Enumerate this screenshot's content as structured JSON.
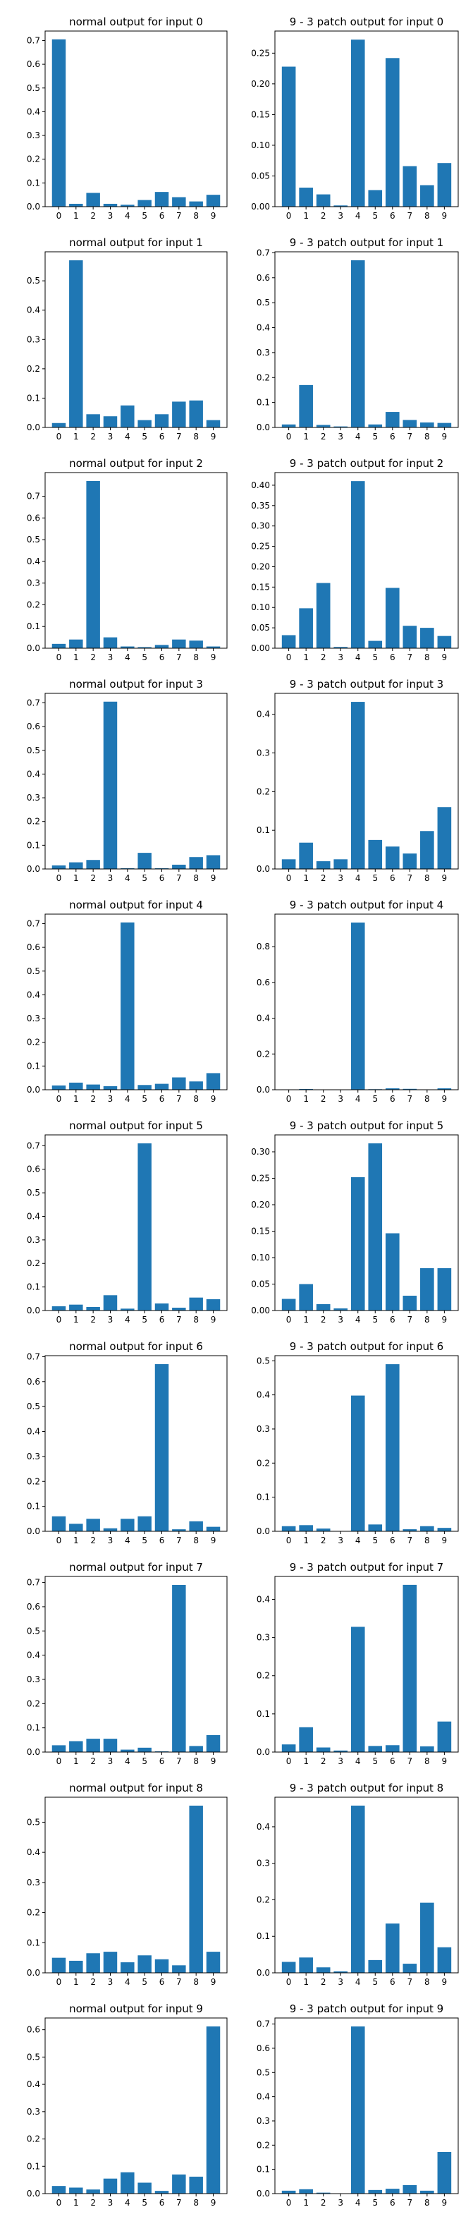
{
  "figure": {
    "bar_color": "#1f77b4",
    "background": "#ffffff",
    "axis_color": "#000000"
  },
  "chart_data": [
    {
      "type": "bar",
      "title": "normal output for input 0",
      "categories": [
        "0",
        "1",
        "2",
        "3",
        "4",
        "5",
        "6",
        "7",
        "8",
        "9"
      ],
      "values": [
        0.705,
        0.012,
        0.058,
        0.012,
        0.008,
        0.028,
        0.062,
        0.04,
        0.022,
        0.05
      ],
      "ylim": [
        0,
        0.74
      ],
      "yticks": [
        0.0,
        0.1,
        0.2,
        0.3,
        0.4,
        0.5,
        0.6,
        0.7
      ],
      "ytick_labels": [
        "0.0",
        "0.1",
        "0.2",
        "0.3",
        "0.4",
        "0.5",
        "0.6",
        "0.7"
      ],
      "xlabel": "",
      "ylabel": ""
    },
    {
      "type": "bar",
      "title": "9 - 3 patch output for input 0",
      "categories": [
        "0",
        "1",
        "2",
        "3",
        "4",
        "5",
        "6",
        "7",
        "8",
        "9"
      ],
      "values": [
        0.228,
        0.031,
        0.02,
        0.002,
        0.272,
        0.027,
        0.242,
        0.066,
        0.035,
        0.071
      ],
      "ylim": [
        0,
        0.286
      ],
      "yticks": [
        0.0,
        0.05,
        0.1,
        0.15,
        0.2,
        0.25
      ],
      "ytick_labels": [
        "0.00",
        "0.05",
        "0.10",
        "0.15",
        "0.20",
        "0.25"
      ],
      "xlabel": "",
      "ylabel": ""
    },
    {
      "type": "bar",
      "title": "normal output for input 1",
      "categories": [
        "0",
        "1",
        "2",
        "3",
        "4",
        "5",
        "6",
        "7",
        "8",
        "9"
      ],
      "values": [
        0.015,
        0.57,
        0.045,
        0.038,
        0.075,
        0.025,
        0.045,
        0.088,
        0.092,
        0.025
      ],
      "ylim": [
        0,
        0.599
      ],
      "yticks": [
        0.0,
        0.1,
        0.2,
        0.3,
        0.4,
        0.5
      ],
      "ytick_labels": [
        "0.0",
        "0.1",
        "0.2",
        "0.3",
        "0.4",
        "0.5"
      ],
      "xlabel": "",
      "ylabel": ""
    },
    {
      "type": "bar",
      "title": "9 - 3 patch output for input 1",
      "categories": [
        "0",
        "1",
        "2",
        "3",
        "4",
        "5",
        "6",
        "7",
        "8",
        "9"
      ],
      "values": [
        0.012,
        0.17,
        0.01,
        0.004,
        0.67,
        0.012,
        0.062,
        0.03,
        0.02,
        0.018
      ],
      "ylim": [
        0,
        0.704
      ],
      "yticks": [
        0.0,
        0.1,
        0.2,
        0.3,
        0.4,
        0.5,
        0.6,
        0.7
      ],
      "ytick_labels": [
        "0.0",
        "0.1",
        "0.2",
        "0.3",
        "0.4",
        "0.5",
        "0.6",
        "0.7"
      ],
      "xlabel": "",
      "ylabel": ""
    },
    {
      "type": "bar",
      "title": "normal output for input 2",
      "categories": [
        "0",
        "1",
        "2",
        "3",
        "4",
        "5",
        "6",
        "7",
        "8",
        "9"
      ],
      "values": [
        0.02,
        0.04,
        0.77,
        0.05,
        0.008,
        0.005,
        0.015,
        0.04,
        0.035,
        0.008
      ],
      "ylim": [
        0,
        0.809
      ],
      "yticks": [
        0.0,
        0.1,
        0.2,
        0.3,
        0.4,
        0.5,
        0.6,
        0.7
      ],
      "ytick_labels": [
        "0.0",
        "0.1",
        "0.2",
        "0.3",
        "0.4",
        "0.5",
        "0.6",
        "0.7"
      ],
      "xlabel": "",
      "ylabel": ""
    },
    {
      "type": "bar",
      "title": "9 - 3 patch output for input 2",
      "categories": [
        "0",
        "1",
        "2",
        "3",
        "4",
        "5",
        "6",
        "7",
        "8",
        "9"
      ],
      "values": [
        0.032,
        0.098,
        0.16,
        0.003,
        0.41,
        0.018,
        0.148,
        0.055,
        0.05,
        0.03
      ],
      "ylim": [
        0,
        0.431
      ],
      "yticks": [
        0.0,
        0.05,
        0.1,
        0.15,
        0.2,
        0.25,
        0.3,
        0.35,
        0.4
      ],
      "ytick_labels": [
        "0.00",
        "0.05",
        "0.10",
        "0.15",
        "0.20",
        "0.25",
        "0.30",
        "0.35",
        "0.40"
      ],
      "xlabel": "",
      "ylabel": ""
    },
    {
      "type": "bar",
      "title": "normal output for input 3",
      "categories": [
        "0",
        "1",
        "2",
        "3",
        "4",
        "5",
        "6",
        "7",
        "8",
        "9"
      ],
      "values": [
        0.015,
        0.028,
        0.038,
        0.705,
        0.003,
        0.068,
        0.003,
        0.018,
        0.05,
        0.058
      ],
      "ylim": [
        0,
        0.74
      ],
      "yticks": [
        0.0,
        0.1,
        0.2,
        0.3,
        0.4,
        0.5,
        0.6,
        0.7
      ],
      "ytick_labels": [
        "0.0",
        "0.1",
        "0.2",
        "0.3",
        "0.4",
        "0.5",
        "0.6",
        "0.7"
      ],
      "xlabel": "",
      "ylabel": ""
    },
    {
      "type": "bar",
      "title": "9 - 3 patch output for input 3",
      "categories": [
        "0",
        "1",
        "2",
        "3",
        "4",
        "5",
        "6",
        "7",
        "8",
        "9"
      ],
      "values": [
        0.025,
        0.068,
        0.02,
        0.025,
        0.432,
        0.075,
        0.058,
        0.04,
        0.098,
        0.16
      ],
      "ylim": [
        0,
        0.454
      ],
      "yticks": [
        0.0,
        0.1,
        0.2,
        0.3,
        0.4
      ],
      "ytick_labels": [
        "0.0",
        "0.1",
        "0.2",
        "0.3",
        "0.4"
      ],
      "xlabel": "",
      "ylabel": ""
    },
    {
      "type": "bar",
      "title": "normal output for input 4",
      "categories": [
        "0",
        "1",
        "2",
        "3",
        "4",
        "5",
        "6",
        "7",
        "8",
        "9"
      ],
      "values": [
        0.018,
        0.03,
        0.022,
        0.015,
        0.705,
        0.02,
        0.025,
        0.052,
        0.035,
        0.07
      ],
      "ylim": [
        0,
        0.74
      ],
      "yticks": [
        0.0,
        0.1,
        0.2,
        0.3,
        0.4,
        0.5,
        0.6,
        0.7
      ],
      "ytick_labels": [
        "0.0",
        "0.1",
        "0.2",
        "0.3",
        "0.4",
        "0.5",
        "0.6",
        "0.7"
      ],
      "xlabel": "",
      "ylabel": ""
    },
    {
      "type": "bar",
      "title": "9 - 3 patch output for input 4",
      "categories": [
        "0",
        "1",
        "2",
        "3",
        "4",
        "5",
        "6",
        "7",
        "8",
        "9"
      ],
      "values": [
        0.002,
        0.004,
        0.001,
        0.001,
        0.935,
        0.003,
        0.008,
        0.005,
        0.002,
        0.008
      ],
      "ylim": [
        0,
        0.982
      ],
      "yticks": [
        0.0,
        0.2,
        0.4,
        0.6,
        0.8
      ],
      "ytick_labels": [
        "0.0",
        "0.2",
        "0.4",
        "0.6",
        "0.8"
      ],
      "xlabel": "",
      "ylabel": ""
    },
    {
      "type": "bar",
      "title": "normal output for input 5",
      "categories": [
        "0",
        "1",
        "2",
        "3",
        "4",
        "5",
        "6",
        "7",
        "8",
        "9"
      ],
      "values": [
        0.018,
        0.025,
        0.015,
        0.065,
        0.008,
        0.71,
        0.03,
        0.012,
        0.055,
        0.048
      ],
      "ylim": [
        0,
        0.746
      ],
      "yticks": [
        0.0,
        0.1,
        0.2,
        0.3,
        0.4,
        0.5,
        0.6,
        0.7
      ],
      "ytick_labels": [
        "0.0",
        "0.1",
        "0.2",
        "0.3",
        "0.4",
        "0.5",
        "0.6",
        "0.7"
      ],
      "xlabel": "",
      "ylabel": ""
    },
    {
      "type": "bar",
      "title": "9 - 3 patch output for input 5",
      "categories": [
        "0",
        "1",
        "2",
        "3",
        "4",
        "5",
        "6",
        "7",
        "8",
        "9"
      ],
      "values": [
        0.022,
        0.05,
        0.012,
        0.004,
        0.252,
        0.316,
        0.146,
        0.028,
        0.08,
        0.08
      ],
      "ylim": [
        0,
        0.332
      ],
      "yticks": [
        0.0,
        0.05,
        0.1,
        0.15,
        0.2,
        0.25,
        0.3
      ],
      "ytick_labels": [
        "0.00",
        "0.05",
        "0.10",
        "0.15",
        "0.20",
        "0.25",
        "0.30"
      ],
      "xlabel": "",
      "ylabel": ""
    },
    {
      "type": "bar",
      "title": "normal output for input 6",
      "categories": [
        "0",
        "1",
        "2",
        "3",
        "4",
        "5",
        "6",
        "7",
        "8",
        "9"
      ],
      "values": [
        0.06,
        0.03,
        0.05,
        0.012,
        0.05,
        0.06,
        0.67,
        0.008,
        0.04,
        0.018
      ],
      "ylim": [
        0,
        0.704
      ],
      "yticks": [
        0.0,
        0.1,
        0.2,
        0.3,
        0.4,
        0.5,
        0.6,
        0.7
      ],
      "ytick_labels": [
        "0.0",
        "0.1",
        "0.2",
        "0.3",
        "0.4",
        "0.5",
        "0.6",
        "0.7"
      ],
      "xlabel": "",
      "ylabel": ""
    },
    {
      "type": "bar",
      "title": "9 - 3 patch output for input 6",
      "categories": [
        "0",
        "1",
        "2",
        "3",
        "4",
        "5",
        "6",
        "7",
        "8",
        "9"
      ],
      "values": [
        0.015,
        0.018,
        0.008,
        0.001,
        0.398,
        0.02,
        0.49,
        0.006,
        0.015,
        0.01
      ],
      "ylim": [
        0,
        0.515
      ],
      "yticks": [
        0.0,
        0.1,
        0.2,
        0.3,
        0.4,
        0.5
      ],
      "ytick_labels": [
        "0.0",
        "0.1",
        "0.2",
        "0.3",
        "0.4",
        "0.5"
      ],
      "xlabel": "",
      "ylabel": ""
    },
    {
      "type": "bar",
      "title": "normal output for input 7",
      "categories": [
        "0",
        "1",
        "2",
        "3",
        "4",
        "5",
        "6",
        "7",
        "8",
        "9"
      ],
      "values": [
        0.028,
        0.045,
        0.055,
        0.055,
        0.01,
        0.018,
        0.003,
        0.69,
        0.025,
        0.07
      ],
      "ylim": [
        0,
        0.725
      ],
      "yticks": [
        0.0,
        0.1,
        0.2,
        0.3,
        0.4,
        0.5,
        0.6,
        0.7
      ],
      "ytick_labels": [
        "0.0",
        "0.1",
        "0.2",
        "0.3",
        "0.4",
        "0.5",
        "0.6",
        "0.7"
      ],
      "xlabel": "",
      "ylabel": ""
    },
    {
      "type": "bar",
      "title": "9 - 3 patch output for input 7",
      "categories": [
        "0",
        "1",
        "2",
        "3",
        "4",
        "5",
        "6",
        "7",
        "8",
        "9"
      ],
      "values": [
        0.02,
        0.065,
        0.012,
        0.004,
        0.328,
        0.016,
        0.018,
        0.438,
        0.015,
        0.08
      ],
      "ylim": [
        0,
        0.46
      ],
      "yticks": [
        0.0,
        0.1,
        0.2,
        0.3,
        0.4
      ],
      "ytick_labels": [
        "0.0",
        "0.1",
        "0.2",
        "0.3",
        "0.4"
      ],
      "xlabel": "",
      "ylabel": ""
    },
    {
      "type": "bar",
      "title": "normal output for input 8",
      "categories": [
        "0",
        "1",
        "2",
        "3",
        "4",
        "5",
        "6",
        "7",
        "8",
        "9"
      ],
      "values": [
        0.05,
        0.04,
        0.065,
        0.07,
        0.035,
        0.058,
        0.045,
        0.025,
        0.555,
        0.07
      ],
      "ylim": [
        0,
        0.583
      ],
      "yticks": [
        0.0,
        0.1,
        0.2,
        0.3,
        0.4,
        0.5
      ],
      "ytick_labels": [
        "0.0",
        "0.1",
        "0.2",
        "0.3",
        "0.4",
        "0.5"
      ],
      "xlabel": "",
      "ylabel": ""
    },
    {
      "type": "bar",
      "title": "9 - 3 patch output for input 8",
      "categories": [
        "0",
        "1",
        "2",
        "3",
        "4",
        "5",
        "6",
        "7",
        "8",
        "9"
      ],
      "values": [
        0.03,
        0.042,
        0.015,
        0.004,
        0.458,
        0.035,
        0.135,
        0.025,
        0.192,
        0.07
      ],
      "ylim": [
        0,
        0.481
      ],
      "yticks": [
        0.0,
        0.1,
        0.2,
        0.3,
        0.4
      ],
      "ytick_labels": [
        "0.0",
        "0.1",
        "0.2",
        "0.3",
        "0.4"
      ],
      "xlabel": "",
      "ylabel": ""
    },
    {
      "type": "bar",
      "title": "normal output for input 9",
      "categories": [
        "0",
        "1",
        "2",
        "3",
        "4",
        "5",
        "6",
        "7",
        "8",
        "9"
      ],
      "values": [
        0.028,
        0.022,
        0.015,
        0.055,
        0.078,
        0.04,
        0.01,
        0.07,
        0.062,
        0.612
      ],
      "ylim": [
        0,
        0.643
      ],
      "yticks": [
        0.0,
        0.1,
        0.2,
        0.3,
        0.4,
        0.5,
        0.6
      ],
      "ytick_labels": [
        "0.0",
        "0.1",
        "0.2",
        "0.3",
        "0.4",
        "0.5",
        "0.6"
      ],
      "xlabel": "",
      "ylabel": ""
    },
    {
      "type": "bar",
      "title": "9 - 3 patch output for input 9",
      "categories": [
        "0",
        "1",
        "2",
        "3",
        "4",
        "5",
        "6",
        "7",
        "8",
        "9"
      ],
      "values": [
        0.012,
        0.018,
        0.004,
        0.001,
        0.69,
        0.015,
        0.02,
        0.035,
        0.012,
        0.172
      ],
      "ylim": [
        0,
        0.725
      ],
      "yticks": [
        0.0,
        0.1,
        0.2,
        0.3,
        0.4,
        0.5,
        0.6,
        0.7
      ],
      "ytick_labels": [
        "0.0",
        "0.1",
        "0.2",
        "0.3",
        "0.4",
        "0.5",
        "0.6",
        "0.7"
      ],
      "xlabel": "",
      "ylabel": ""
    }
  ]
}
